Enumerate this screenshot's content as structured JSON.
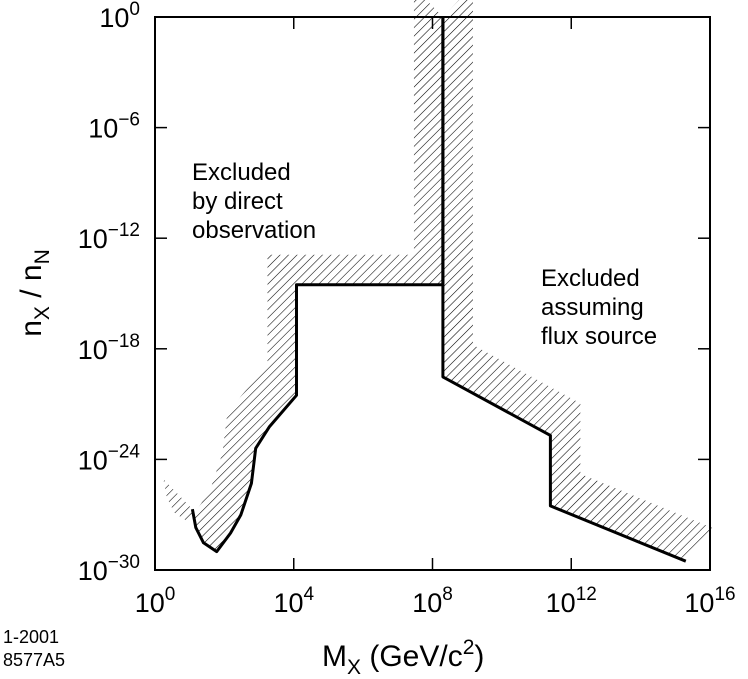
{
  "chart_data": {
    "type": "area",
    "x_scale": "log",
    "y_scale": "log",
    "xlim": [
      1,
      1e+16
    ],
    "ylim": [
      1e-30,
      1
    ],
    "x_ticks": [
      {
        "value": 1,
        "base": "10",
        "exp": "0"
      },
      {
        "value": 10000,
        "base": "10",
        "exp": "4"
      },
      {
        "value": 100000000.0,
        "base": "10",
        "exp": "8"
      },
      {
        "value": 1000000000000.0,
        "base": "10",
        "exp": "12"
      },
      {
        "value": 1e+16,
        "base": "10",
        "exp": "16"
      }
    ],
    "y_ticks": [
      {
        "value": 1,
        "base": "10",
        "exp": "0"
      },
      {
        "value": 1e-06,
        "base": "10",
        "exp": "−6"
      },
      {
        "value": 1e-12,
        "base": "10",
        "exp": "−12"
      },
      {
        "value": 1e-18,
        "base": "10",
        "exp": "−18"
      },
      {
        "value": 1e-24,
        "base": "10",
        "exp": "−24"
      },
      {
        "value": 1e-30,
        "base": "10",
        "exp": "−30"
      }
    ],
    "xlabel": {
      "main": "M",
      "sub": "X",
      "unit_pre": " (GeV/c",
      "unit_sup": "2",
      "unit_post": ")"
    },
    "ylabel": {
      "a": "n",
      "a_sub": "X",
      "sep": " / n",
      "b_sub": "N"
    },
    "annotations": [
      {
        "lines": [
          "Excluded",
          "by direct",
          "observation"
        ]
      },
      {
        "lines": [
          "Excluded",
          "assuming",
          "flux source"
        ]
      }
    ],
    "series": [
      {
        "role": "direct-observation-limit",
        "points": [
          [
            12,
            2e-27
          ],
          [
            15,
            2e-28
          ],
          [
            25,
            3e-29
          ],
          [
            60,
            1e-29
          ],
          [
            150,
            1e-28
          ],
          [
            300,
            1e-27
          ],
          [
            600,
            5e-26
          ],
          [
            800,
            4e-24
          ],
          [
            2000,
            6e-23
          ],
          [
            12000,
            3e-21
          ],
          [
            12000,
            3e-15
          ],
          [
            200000000.0,
            3e-15
          ],
          [
            200000000.0,
            1
          ]
        ]
      },
      {
        "role": "flux-source-limit",
        "points": [
          [
            200000000.0,
            1
          ],
          [
            200000000.0,
            3e-20
          ],
          [
            250000000000.0,
            2e-23
          ],
          [
            250000000000.0,
            3e-27
          ],
          [
            2000000000000000.0,
            3e-30
          ]
        ]
      }
    ],
    "figure_code": [
      "1-2001",
      "8577A5"
    ]
  }
}
